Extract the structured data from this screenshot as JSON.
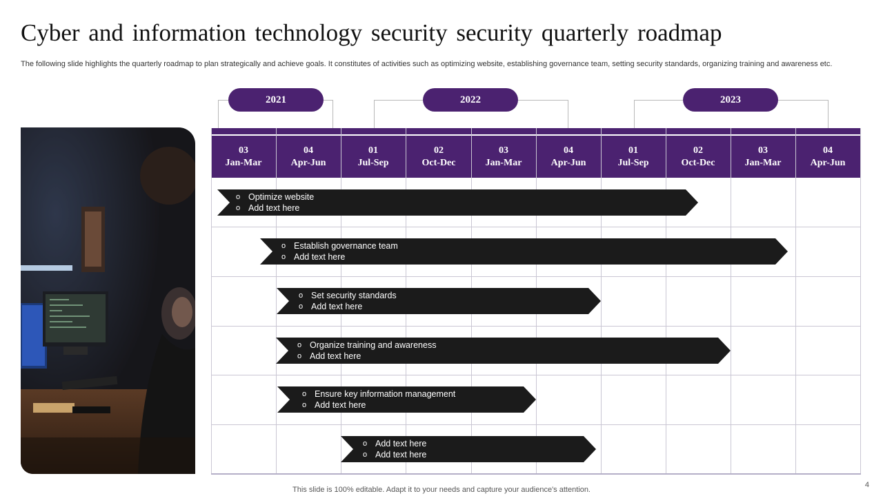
{
  "title": "Cyber and information technology security security quarterly roadmap",
  "subtitle": "The following slide highlights the quarterly roadmap to plan strategically and achieve goals. It constitutes of activities such as optimizing website, establishing governance team, setting security standards, organizing training and awareness etc.",
  "years": [
    "2021",
    "2022",
    "2023"
  ],
  "quarters": [
    {
      "num": "03",
      "range": "Jan-Mar"
    },
    {
      "num": "04",
      "range": "Apr-Jun"
    },
    {
      "num": "01",
      "range": "Jul-Sep"
    },
    {
      "num": "02",
      "range": "Oct-Dec"
    },
    {
      "num": "03",
      "range": "Jan-Mar"
    },
    {
      "num": "04",
      "range": "Apr-Jun"
    },
    {
      "num": "01",
      "range": "Jul-Sep"
    },
    {
      "num": "02",
      "range": "Oct-Dec"
    },
    {
      "num": "03",
      "range": "Jan-Mar"
    },
    {
      "num": "04",
      "range": "Apr-Jun"
    }
  ],
  "tasks": [
    {
      "line1": "Optimize website",
      "line2": "Add text here"
    },
    {
      "line1": "Establish governance  team",
      "line2": "Add text here"
    },
    {
      "line1": "Set security standards",
      "line2": "Add text here"
    },
    {
      "line1": "Organize training  and awareness",
      "line2": "Add text here"
    },
    {
      "line1": "Ensure  key information  management",
      "line2": "Add text here"
    },
    {
      "line1": "Add text here",
      "line2": "Add text here"
    }
  ],
  "bullet_glyph": "o",
  "footer": "This slide is 100% editable. Adapt it to your needs and capture your audience's attention.",
  "page_number": "4",
  "colors": {
    "accent": "#4b2270",
    "bar": "#1b1b1b",
    "grid": "#c9c6d3"
  },
  "photo_icon": "hacker-at-computer-photo"
}
